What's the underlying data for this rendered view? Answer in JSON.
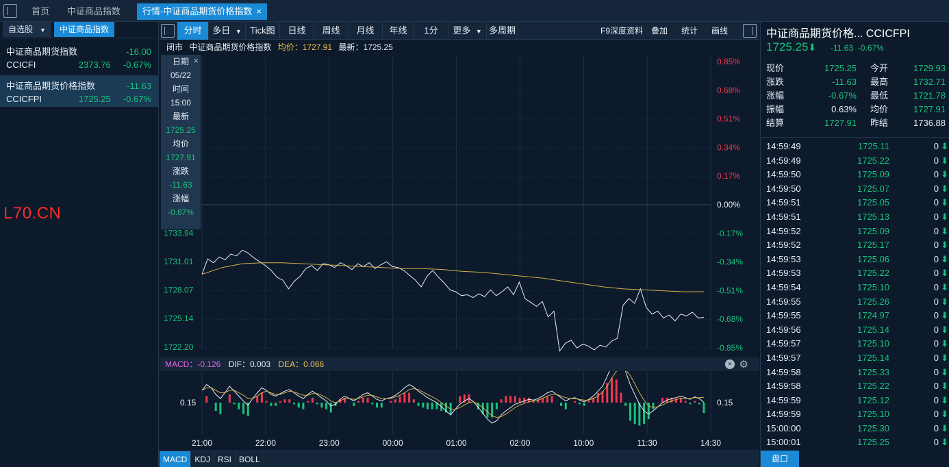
{
  "tabs": [
    "首页",
    "中证商品指数",
    "行情-中证商品期货价格指数"
  ],
  "tab_close": "×",
  "watchlist": {
    "tabs": [
      "自选股",
      "中证商品指数"
    ],
    "dropdown": "▼",
    "items": [
      {
        "name": "中证商品期货指数",
        "change": "-16.00",
        "code": "CCICFI",
        "price": "2373.76",
        "pct": "-0.67%"
      },
      {
        "name": "中证商品期货价格指数",
        "change": "-11.63",
        "code": "CCICFPI",
        "price": "1725.25",
        "pct": "-0.67%"
      }
    ],
    "watermark": "L70.CN"
  },
  "toolbar": {
    "periods": [
      "分时",
      "多日",
      "Tick图",
      "日线",
      "周线",
      "月线",
      "年线",
      "1分",
      "更多",
      "多周期"
    ],
    "dropdown": "▼",
    "right": [
      "F9深度资料",
      "叠加",
      "统计",
      "画线"
    ]
  },
  "info": {
    "status": "闭市",
    "name": "中证商品期货价格指数",
    "avg": "均价：1727.91",
    "last": "最新：1725.25"
  },
  "tooltip": {
    "close": "×",
    "rows": [
      {
        "k": "日期",
        "v": "05/22"
      },
      {
        "k": "时间",
        "v": "15:00"
      },
      {
        "k": "最新",
        "v": "1725.25"
      },
      {
        "k": "均价",
        "v": "1727.91"
      },
      {
        "k": "涨跌",
        "v": "-11.63"
      },
      {
        "k": "涨幅",
        "v": "-0.67%"
      }
    ]
  },
  "macd": {
    "macd": "MACD：-0.126",
    "dif": "DIF：0.003",
    "dea": "DEA：0.066",
    "close": "×",
    "gear": "⚙"
  },
  "indicator_tabs": [
    "MACD",
    "KDJ",
    "RSI",
    "BOLL"
  ],
  "chart_data": {
    "type": "line",
    "prev_close": 1736.88,
    "y_ticks_left": [
      "1733.94",
      "1731.01",
      "1728.07",
      "1725.14",
      "1722.20"
    ],
    "y_ticks_right": [
      "0.85%",
      "0.68%",
      "0.51%",
      "0.34%",
      "0.17%",
      "0.00%",
      "-0.17%",
      "-0.34%",
      "-0.51%",
      "-0.68%",
      "-0.85%"
    ],
    "x_ticks": [
      "21:00",
      "22:00",
      "23:00",
      "00:00",
      "01:00",
      "02:00",
      "10:00",
      "11:30",
      "14:30"
    ],
    "macd_level_label": "0.15",
    "price": [
      1729.7,
      1731.3,
      1730.9,
      1731.5,
      1731.2,
      1731.8,
      1731.6,
      1732.2,
      1731.9,
      1731.4,
      1731.0,
      1730.6,
      1730.1,
      1729.4,
      1729.1,
      1728.2,
      1729.0,
      1729.5,
      1730.3,
      1730.6,
      1730.1,
      1730.8,
      1730.7,
      1730.4,
      1730.9,
      1730.6,
      1730.2,
      1730.8,
      1730.5,
      1730.9,
      1730.3,
      1730.7,
      1731.0,
      1730.5,
      1730.4,
      1730.1,
      1729.6,
      1729.1,
      1728.4,
      1729.5,
      1730.1,
      1729.4,
      1728.8,
      1728.1,
      1727.9,
      1727.5,
      1727.6,
      1727.3,
      1727.7,
      1727.4,
      1728.1,
      1727.5,
      1727.9,
      1728.4,
      1727.6,
      1728.9,
      1727.2,
      1726.8,
      1726.4,
      1726.9,
      1725.3,
      1725.9,
      1721.8,
      1722.6,
      1722.9,
      1722.1,
      1722.5,
      1722.3,
      1721.9,
      1722.4,
      1722.2,
      1722.8,
      1723.1,
      1726.5,
      1727.2,
      1726.7,
      1728.2,
      1726.3,
      1725.6,
      1725.9,
      1725.2,
      1725.5,
      1724.9,
      1725.6,
      1725.4,
      1725.8,
      1725.2,
      1725.25
    ],
    "avg": [
      1729.7,
      1730.4,
      1730.8,
      1730.9,
      1730.9,
      1730.8,
      1730.7,
      1730.6,
      1730.5,
      1730.4,
      1730.3,
      1730.3,
      1730.2,
      1730.0,
      1729.9,
      1729.7,
      1729.5,
      1729.3,
      1729.0,
      1728.7,
      1728.4,
      1728.2,
      1728.1,
      1728.0,
      1727.9,
      1727.91
    ],
    "macd_line": [
      0.15,
      0.22,
      0.18,
      0.1,
      0.05,
      0.12,
      0.2,
      0.14,
      0.08,
      0.02,
      -0.03,
      0.05,
      0.12,
      0.18,
      0.15,
      0.1,
      0.08,
      0.11,
      0.14,
      0.16,
      0.12,
      0.08,
      0.05,
      0.1,
      0.14,
      0.1,
      0.06,
      0.02,
      -0.04,
      -0.02,
      0.04,
      0.08,
      0.05,
      0.02,
      0.06,
      0.1,
      0.12,
      0.08,
      0.04,
      0.02,
      0.05,
      0.06,
      0.09,
      0.13,
      0.18,
      0.22,
      0.19,
      0.14,
      0.1,
      0.06,
      0.03,
      0.0,
      -0.05,
      -0.1,
      -0.15,
      -0.08,
      -0.02,
      0.02,
      0.05,
      0.01,
      -0.06,
      -0.13,
      -0.2,
      -0.25,
      -0.22,
      -0.15,
      -0.1,
      -0.06,
      -0.02,
      0.0,
      0.02,
      0.04,
      0.03,
      0.05,
      0.08,
      0.12,
      0.14,
      0.1,
      0.06,
      0.02,
      0.05,
      0.06,
      0.03,
      0.01,
      0.04,
      0.08,
      0.14,
      0.2,
      0.32,
      0.45,
      0.52,
      0.48,
      0.38,
      0.22,
      0.1,
      -0.02,
      -0.1,
      -0.14,
      -0.1,
      -0.05,
      0.0,
      0.03,
      0.05,
      0.06,
      0.08,
      0.06,
      0.04,
      0.07,
      0.05,
      0.003
    ],
    "signal_line": [
      0.15,
      0.18,
      0.18,
      0.15,
      0.12,
      0.12,
      0.15,
      0.15,
      0.12,
      0.09,
      0.05,
      0.05,
      0.08,
      0.12,
      0.14,
      0.12,
      0.1,
      0.1,
      0.12,
      0.14,
      0.13,
      0.11,
      0.09,
      0.09,
      0.11,
      0.11,
      0.09,
      0.06,
      0.02,
      0.0,
      0.02,
      0.05,
      0.05,
      0.04,
      0.05,
      0.07,
      0.09,
      0.09,
      0.07,
      0.05,
      0.05,
      0.05,
      0.07,
      0.09,
      0.12,
      0.16,
      0.17,
      0.16,
      0.13,
      0.1,
      0.07,
      0.04,
      0.0,
      -0.04,
      -0.08,
      -0.08,
      -0.06,
      -0.03,
      0.0,
      0.01,
      -0.02,
      -0.06,
      -0.11,
      -0.16,
      -0.18,
      -0.17,
      -0.14,
      -0.1,
      -0.06,
      -0.03,
      -0.01,
      0.01,
      0.02,
      0.03,
      0.05,
      0.08,
      0.1,
      0.1,
      0.08,
      0.06,
      0.05,
      0.05,
      0.04,
      0.03,
      0.03,
      0.05,
      0.08,
      0.13,
      0.2,
      0.3,
      0.38,
      0.42,
      0.4,
      0.33,
      0.23,
      0.12,
      0.03,
      -0.04,
      -0.06,
      -0.05,
      -0.03,
      0.0,
      0.02,
      0.04,
      0.05,
      0.05,
      0.05,
      0.06,
      0.06,
      0.066
    ]
  },
  "right_panel": {
    "title": "中证商品期货价格...  CCICFPI",
    "price": "1725.25",
    "arrow": "⬇",
    "change": "-11.63",
    "pct": "-0.67%",
    "quote": [
      {
        "k": "现价",
        "v": "1725.25",
        "k2": "今开",
        "v2": "1729.93",
        "c": "green",
        "c2": "green"
      },
      {
        "k": "涨跌",
        "v": "-11.63",
        "k2": "最高",
        "v2": "1732.71",
        "c": "green",
        "c2": "green"
      },
      {
        "k": "涨幅",
        "v": "-0.67%",
        "k2": "最低",
        "v2": "1721.78",
        "c": "green",
        "c2": "green"
      },
      {
        "k": "振幅",
        "v": "0.63%",
        "k2": "均价",
        "v2": "1727.91",
        "c": "white",
        "c2": "green"
      },
      {
        "k": "结算",
        "v": "1727.91",
        "k2": "昨结",
        "v2": "1736.88",
        "c": "green",
        "c2": "white"
      }
    ],
    "ticks": [
      {
        "t": "14:59:49",
        "p": "1725.11",
        "vol": "0"
      },
      {
        "t": "14:59:49",
        "p": "1725.22",
        "vol": "0"
      },
      {
        "t": "14:59:50",
        "p": "1725.09",
        "vol": "0"
      },
      {
        "t": "14:59:50",
        "p": "1725.07",
        "vol": "0"
      },
      {
        "t": "14:59:51",
        "p": "1725.05",
        "vol": "0"
      },
      {
        "t": "14:59:51",
        "p": "1725.13",
        "vol": "0"
      },
      {
        "t": "14:59:52",
        "p": "1725.09",
        "vol": "0"
      },
      {
        "t": "14:59:52",
        "p": "1725.17",
        "vol": "0"
      },
      {
        "t": "14:59:53",
        "p": "1725.06",
        "vol": "0"
      },
      {
        "t": "14:59:53",
        "p": "1725.22",
        "vol": "0"
      },
      {
        "t": "14:59:54",
        "p": "1725.10",
        "vol": "0"
      },
      {
        "t": "14:59:55",
        "p": "1725.26",
        "vol": "0"
      },
      {
        "t": "14:59:55",
        "p": "1724.97",
        "vol": "0"
      },
      {
        "t": "14:59:56",
        "p": "1725.14",
        "vol": "0"
      },
      {
        "t": "14:59:57",
        "p": "1725.10",
        "vol": "0"
      },
      {
        "t": "14:59:57",
        "p": "1725.14",
        "vol": "0"
      },
      {
        "t": "14:59:58",
        "p": "1725.33",
        "vol": "0"
      },
      {
        "t": "14:59:58",
        "p": "1725.22",
        "vol": "0"
      },
      {
        "t": "14:59:59",
        "p": "1725.12",
        "vol": "0"
      },
      {
        "t": "14:59:59",
        "p": "1725.10",
        "vol": "0"
      },
      {
        "t": "15:00:00",
        "p": "1725.30",
        "vol": "0"
      },
      {
        "t": "15:00:01",
        "p": "1725.25",
        "vol": "0"
      }
    ],
    "pankou": "盘口"
  },
  "colors": {
    "up": "#f03750",
    "down": "#19c37d",
    "accent": "#1a8ad6",
    "avg_line": "#d4b04a"
  }
}
